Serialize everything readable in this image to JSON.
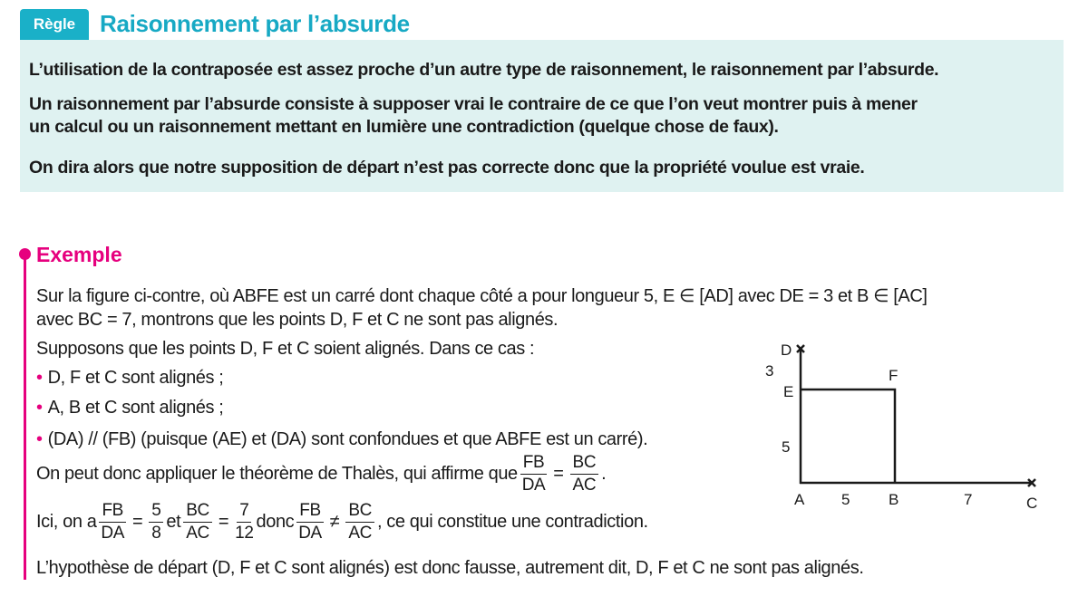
{
  "rule": {
    "tag": "Règle",
    "title": "Raisonnement par l’absurde",
    "lines": [
      "L’utilisation de la contraposée est assez proche d’un autre type de raisonnement, le raisonnement par l’absurde.",
      "Un raisonnement par l’absurde consiste à supposer vrai le contraire de ce que l’on veut montrer puis à mener",
      "un calcul ou un raisonnement mettant en lumière une contradiction (quelque chose de faux).",
      "On dira alors que notre supposition de départ n’est pas correcte donc que la propriété voulue est vraie."
    ]
  },
  "example": {
    "title": "Exemple",
    "line1": "Sur la figure ci-contre, où ABFE est un carré dont chaque côté a pour longueur 5, E ∈ [AD] avec DE = 3 et B ∈ [AC]",
    "line2": "avec BC = 7, montrons que les points D, F et C ne sont pas alignés.",
    "line3": "Supposons que les points D, F et C soient alignés. Dans ce cas :",
    "bullets": [
      "D, F et C sont alignés ;",
      "A, B et C sont alignés ;",
      "(DA) // (FB) (puisque (AE) et (DA) sont confondues et que ABFE est un carré)."
    ],
    "bullet_symbol": "•",
    "thales_text": "On peut donc appliquer le théorème de Thalès, qui affirme que",
    "ici_text": "Ici, on a",
    "et_text": "et",
    "donc_text": "donc",
    "contradiction_text": ", ce qui constitue une contradiction.",
    "period": ".",
    "eq": "=",
    "neq": "≠",
    "fractions": {
      "fb_da": {
        "num": "FB",
        "den": "DA"
      },
      "bc_ac": {
        "num": "BC",
        "den": "AC"
      },
      "five_eighths": {
        "num": "5",
        "den": "8"
      },
      "seven_twelfths": {
        "num": "7",
        "den": "12"
      }
    },
    "conclusion": "L’hypothèse de départ (D, F et C sont alignés) est donc fausse, autrement dit, D, F et C ne sont pas alignés."
  },
  "figure": {
    "points": {
      "A": "A",
      "B": "B",
      "C": "C",
      "D": "D",
      "E": "E",
      "F": "F"
    },
    "lengths": {
      "DE": "3",
      "AE": "5",
      "AB": "5",
      "BC": "7"
    }
  },
  "colors": {
    "rule_accent": "#1ab0c8",
    "rule_bg": "#dff2f1",
    "example_accent": "#e6007e"
  }
}
